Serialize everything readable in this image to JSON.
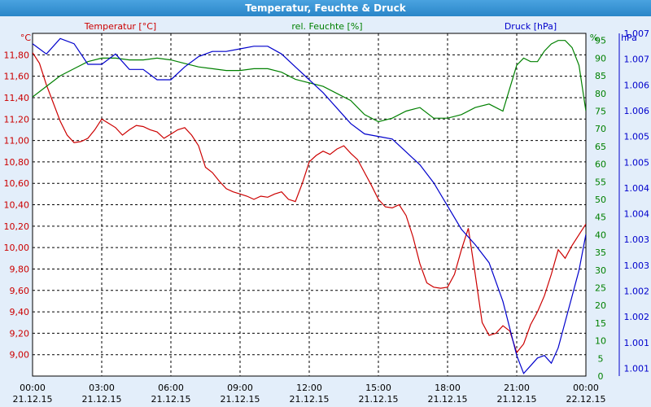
{
  "window": {
    "title": "Temperatur, Feuchte & Druck"
  },
  "colors": {
    "temperature": "#cc0000",
    "humidity": "#008000",
    "pressure": "#0000cc",
    "plot_background": "#ffffff",
    "page_background": "#e3eefa"
  },
  "chart_data": {
    "type": "line",
    "title": "Temperatur, Feuchte & Druck",
    "grid": true,
    "x_ticks": [
      {
        "time": "00:00",
        "date": "21.12.15"
      },
      {
        "time": "03:00",
        "date": "21.12.15"
      },
      {
        "time": "06:00",
        "date": "21.12.15"
      },
      {
        "time": "09:00",
        "date": "21.12.15"
      },
      {
        "time": "12:00",
        "date": "21.12.15"
      },
      {
        "time": "15:00",
        "date": "21.12.15"
      },
      {
        "time": "18:00",
        "date": "21.12.15"
      },
      {
        "time": "21:00",
        "date": "21.12.15"
      },
      {
        "time": "00:00",
        "date": "22.12.15"
      }
    ],
    "xlim_hours": [
      0,
      24
    ],
    "axes": {
      "temperature": {
        "label": "Temperatur [°C]",
        "unit": "°C",
        "position": "left",
        "ylim": [
          8.8,
          12.0
        ],
        "ticks": [
          "9,00",
          "9,20",
          "9,40",
          "9,60",
          "9,80",
          "10,00",
          "10,20",
          "10,40",
          "10,60",
          "10,80",
          "11,00",
          "11,20",
          "11,40",
          "11,60",
          "11,80"
        ]
      },
      "humidity": {
        "label": "rel. Feuchte [%]",
        "unit": "%",
        "position": "right",
        "ylim": [
          0,
          97
        ],
        "ticks": [
          "0",
          "5",
          "10",
          "15",
          "20",
          "25",
          "30",
          "35",
          "40",
          "45",
          "50",
          "55",
          "60",
          "65",
          "70",
          "75",
          "80",
          "85",
          "90",
          "95"
        ]
      },
      "pressure": {
        "label": "Druck [hPa]",
        "unit": "hPa",
        "position": "right-outer",
        "ylim": [
          1000.85,
          1007.5
        ],
        "ticks": [
          "1.001",
          "1.001",
          "1.002",
          "1.002",
          "1.003",
          "1.003",
          "1.004",
          "1.004",
          "1.005",
          "1.005",
          "1.006",
          "1.006",
          "1.007",
          "1.007"
        ]
      }
    },
    "series": [
      {
        "name": "Temperatur [°C]",
        "axis": "temperature",
        "color": "#cc0000",
        "x": [
          0,
          0.3,
          0.6,
          0.9,
          1.2,
          1.5,
          1.8,
          2.1,
          2.4,
          2.7,
          3.0,
          3.3,
          3.6,
          3.9,
          4.2,
          4.5,
          4.8,
          5.1,
          5.4,
          5.7,
          6.0,
          6.3,
          6.6,
          6.9,
          7.2,
          7.5,
          7.8,
          8.1,
          8.4,
          8.7,
          9.0,
          9.3,
          9.6,
          9.9,
          10.2,
          10.5,
          10.8,
          11.1,
          11.4,
          11.7,
          12.0,
          12.3,
          12.6,
          12.9,
          13.2,
          13.5,
          13.8,
          14.1,
          14.4,
          14.7,
          15.0,
          15.3,
          15.6,
          15.9,
          16.2,
          16.5,
          16.8,
          17.1,
          17.4,
          17.7,
          18.0,
          18.3,
          18.6,
          18.9,
          19.2,
          19.5,
          19.8,
          20.1,
          20.4,
          20.7,
          21.0,
          21.3,
          21.6,
          21.9,
          22.2,
          22.5,
          22.8,
          23.1,
          23.4,
          23.7,
          24.0
        ],
        "values": [
          11.82,
          11.72,
          11.52,
          11.35,
          11.18,
          11.05,
          10.98,
          10.99,
          11.02,
          11.1,
          11.2,
          11.16,
          11.12,
          11.05,
          11.1,
          11.14,
          11.13,
          11.1,
          11.08,
          11.02,
          11.06,
          11.1,
          11.12,
          11.05,
          10.95,
          10.75,
          10.7,
          10.62,
          10.55,
          10.52,
          10.5,
          10.48,
          10.45,
          10.48,
          10.47,
          10.5,
          10.52,
          10.45,
          10.43,
          10.6,
          10.8,
          10.86,
          10.9,
          10.87,
          10.92,
          10.95,
          10.88,
          10.82,
          10.7,
          10.58,
          10.45,
          10.38,
          10.37,
          10.4,
          10.3,
          10.1,
          9.85,
          9.67,
          9.63,
          9.62,
          9.63,
          9.75,
          9.98,
          10.18,
          9.75,
          9.3,
          9.18,
          9.2,
          9.27,
          9.22,
          9.02,
          9.1,
          9.28,
          9.4,
          9.55,
          9.75,
          9.98,
          9.9,
          10.02,
          10.12,
          10.22
        ]
      },
      {
        "name": "rel. Feuchte [%]",
        "axis": "humidity",
        "color": "#008000",
        "x": [
          0,
          0.6,
          1.2,
          1.8,
          2.4,
          3.0,
          3.6,
          4.2,
          4.8,
          5.4,
          6.0,
          6.6,
          7.2,
          7.8,
          8.4,
          9.0,
          9.6,
          10.2,
          10.8,
          11.4,
          12.0,
          12.6,
          13.2,
          13.8,
          14.4,
          15.0,
          15.6,
          16.2,
          16.8,
          17.4,
          18.0,
          18.6,
          19.2,
          19.8,
          20.4,
          21.0,
          21.3,
          21.6,
          21.9,
          22.2,
          22.5,
          22.8,
          23.1,
          23.4,
          23.7,
          24.0
        ],
        "values": [
          79,
          82,
          85,
          87,
          89,
          90,
          90,
          89.5,
          89.5,
          90,
          89.5,
          88.5,
          87.5,
          87,
          86.5,
          86.5,
          87,
          87,
          86,
          84,
          83,
          82,
          80,
          78,
          74,
          72,
          73,
          75,
          76,
          73,
          73,
          74,
          76,
          77,
          75,
          88,
          90,
          89,
          89,
          92,
          94,
          95,
          95,
          93,
          88,
          75
        ]
      },
      {
        "name": "Druck [hPa]",
        "axis": "pressure",
        "color": "#0000cc",
        "x": [
          0,
          0.6,
          1.2,
          1.8,
          2.4,
          3.0,
          3.6,
          4.2,
          4.8,
          5.4,
          6.0,
          6.6,
          7.2,
          7.8,
          8.4,
          9.0,
          9.6,
          10.2,
          10.8,
          11.4,
          12.0,
          12.6,
          13.2,
          13.8,
          14.4,
          15.0,
          15.6,
          16.2,
          16.8,
          17.4,
          18.0,
          18.6,
          19.2,
          19.8,
          20.4,
          21.0,
          21.3,
          21.6,
          21.9,
          22.2,
          22.5,
          22.8,
          23.1,
          23.4,
          23.7,
          24.0
        ],
        "values": [
          1007.3,
          1007.1,
          1007.4,
          1007.3,
          1006.9,
          1006.9,
          1007.1,
          1006.8,
          1006.8,
          1006.6,
          1006.6,
          1006.85,
          1007.05,
          1007.15,
          1007.15,
          1007.2,
          1007.25,
          1007.25,
          1007.1,
          1006.85,
          1006.6,
          1006.35,
          1006.05,
          1005.75,
          1005.55,
          1005.5,
          1005.45,
          1005.2,
          1004.95,
          1004.6,
          1004.15,
          1003.7,
          1003.4,
          1003.05,
          1002.3,
          1001.25,
          1000.9,
          1001.05,
          1001.2,
          1001.25,
          1001.1,
          1001.4,
          1001.9,
          1002.4,
          1002.9,
          1003.6
        ]
      }
    ]
  }
}
